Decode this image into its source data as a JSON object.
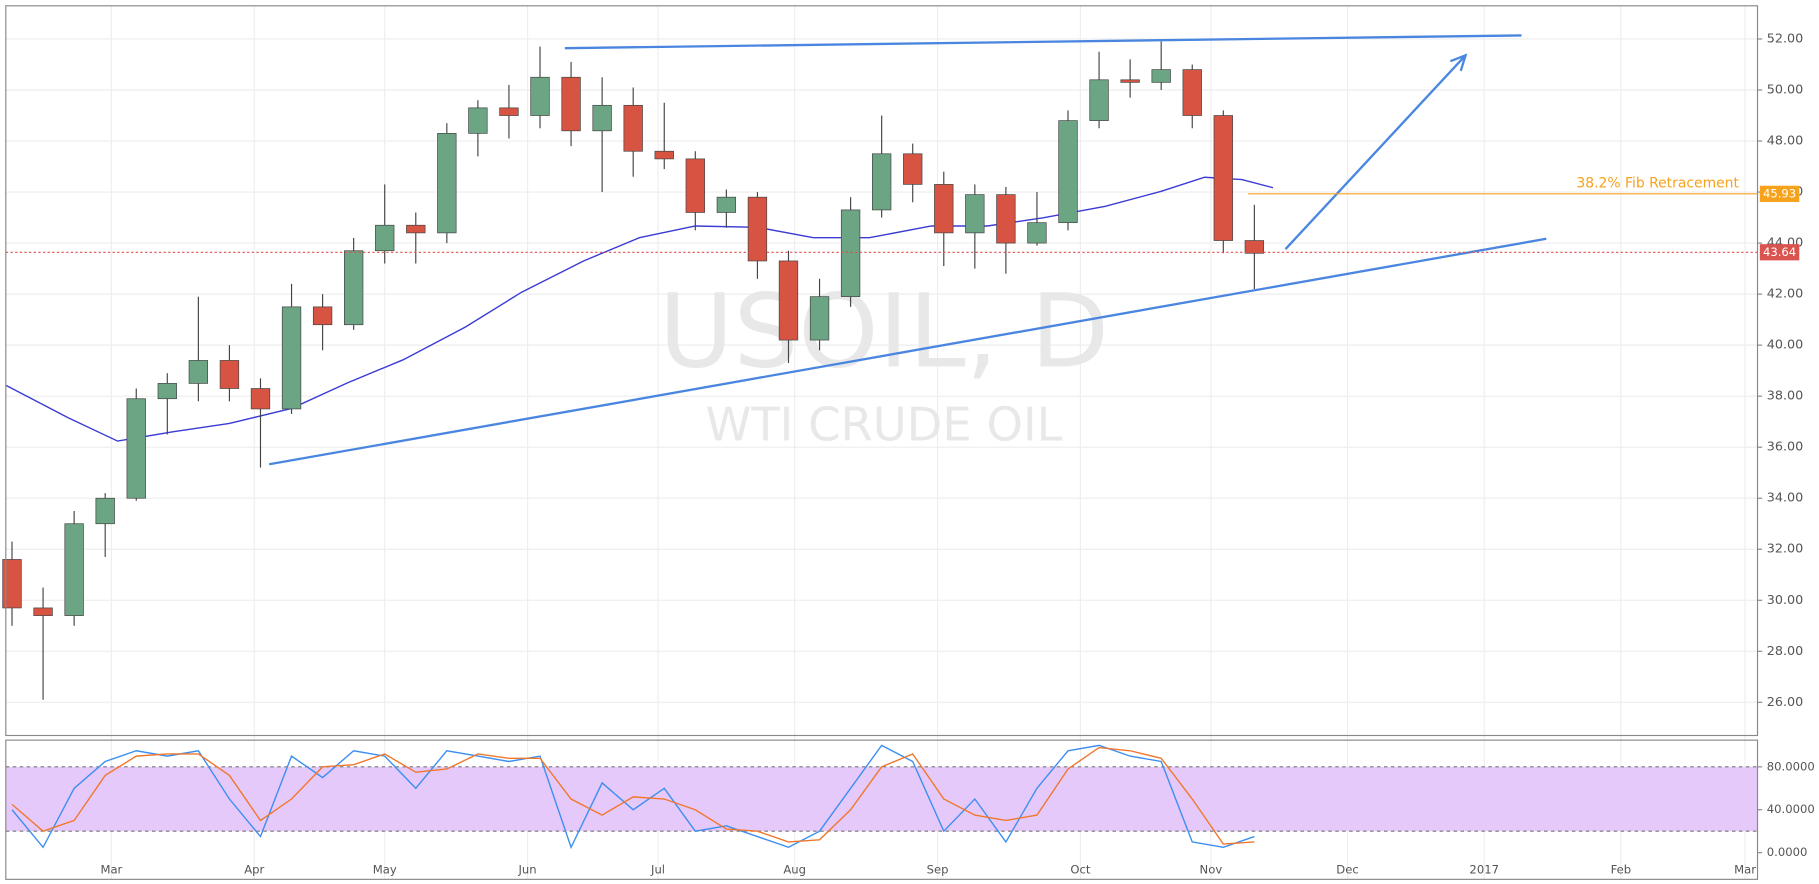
{
  "chart_data": [
    {
      "type": "candlestick",
      "watermark": "USOIL, D",
      "watermark_subtitle": "WTI CRUDE OIL",
      "xlim": [
        0,
        282
      ],
      "xticks": [
        {
          "value": 17,
          "label": "Mar"
        },
        {
          "value": 40,
          "label": "Apr"
        },
        {
          "value": 61,
          "label": "May"
        },
        {
          "value": 84,
          "label": "Jun"
        },
        {
          "value": 105,
          "label": "Jul"
        },
        {
          "value": 127,
          "label": "Aug"
        },
        {
          "value": 150,
          "label": "Sep"
        },
        {
          "value": 173,
          "label": "Oct"
        },
        {
          "value": 194,
          "label": "Nov"
        },
        {
          "value": 216,
          "label": "Dec"
        },
        {
          "value": 238,
          "label": "2017"
        },
        {
          "value": 260,
          "label": "Feb"
        },
        {
          "value": 280,
          "label": "Mar"
        }
      ],
      "ylim": [
        24.7,
        53.3
      ],
      "yticks": [
        {
          "value": 26,
          "label": "26.00"
        },
        {
          "value": 28,
          "label": "28.00"
        },
        {
          "value": 30,
          "label": "30.00"
        },
        {
          "value": 32,
          "label": "32.00"
        },
        {
          "value": 34,
          "label": "34.00"
        },
        {
          "value": 36,
          "label": "36.00"
        },
        {
          "value": 38,
          "label": "38.00"
        },
        {
          "value": 40,
          "label": "40.00"
        },
        {
          "value": 42,
          "label": "42.00"
        },
        {
          "value": 44,
          "label": "44.00"
        },
        {
          "value": 46,
          "label": "46.00"
        },
        {
          "value": 48,
          "label": "48.00"
        },
        {
          "value": 50,
          "label": "50.00"
        },
        {
          "value": 52,
          "label": "52.00"
        }
      ],
      "grid": true,
      "color_up": "#6ba583",
      "color_down": "#d75442",
      "x": [
        1,
        6,
        11,
        16,
        21,
        26,
        31,
        36,
        41,
        46,
        51,
        56,
        61,
        66,
        71,
        76,
        81,
        86,
        91,
        96,
        101,
        106,
        111,
        116,
        121,
        126,
        131,
        136,
        141,
        146,
        151,
        156,
        161,
        166,
        171,
        176,
        181,
        186,
        191,
        196,
        201
      ],
      "open": [
        31.6,
        29.7,
        29.4,
        33.0,
        34.0,
        37.9,
        38.5,
        39.4,
        38.3,
        37.5,
        41.5,
        40.8,
        43.7,
        44.7,
        44.4,
        48.3,
        49.3,
        49.0,
        50.5,
        48.4,
        49.4,
        47.6,
        47.3,
        45.2,
        45.8,
        43.3,
        40.2,
        41.9,
        45.3,
        47.5,
        46.3,
        44.4,
        45.9,
        44.0,
        44.8,
        48.8,
        50.4,
        50.3,
        50.8,
        49.0,
        44.1
      ],
      "high": [
        32.3,
        30.5,
        33.5,
        34.2,
        38.3,
        38.9,
        41.9,
        40.0,
        38.7,
        42.4,
        42.0,
        44.2,
        46.3,
        45.2,
        48.7,
        49.6,
        50.2,
        51.7,
        51.1,
        50.5,
        50.1,
        49.5,
        47.6,
        46.1,
        46.0,
        43.7,
        42.6,
        45.8,
        49.0,
        47.9,
        46.8,
        46.3,
        46.2,
        46.0,
        49.2,
        51.5,
        51.2,
        51.9,
        51.0,
        49.2,
        45.5
      ],
      "low": [
        29.0,
        26.1,
        29.0,
        31.7,
        33.9,
        36.5,
        37.8,
        37.8,
        35.2,
        37.3,
        39.8,
        40.6,
        43.2,
        43.2,
        44.0,
        47.4,
        48.1,
        48.5,
        47.8,
        46.0,
        46.6,
        46.9,
        44.5,
        44.6,
        42.6,
        39.3,
        39.8,
        41.5,
        45.0,
        45.6,
        43.1,
        43.0,
        42.8,
        43.9,
        44.5,
        48.5,
        49.7,
        50.0,
        48.5,
        43.6,
        42.2
      ],
      "close": [
        29.7,
        29.4,
        33.0,
        34.0,
        37.9,
        38.5,
        39.4,
        38.3,
        37.5,
        41.5,
        40.8,
        43.7,
        44.7,
        44.4,
        48.3,
        49.3,
        49.0,
        50.5,
        48.4,
        49.4,
        47.6,
        47.3,
        45.2,
        45.8,
        43.3,
        40.2,
        41.9,
        45.3,
        47.5,
        46.3,
        44.4,
        45.9,
        44.0,
        44.8,
        48.8,
        50.4,
        50.3,
        50.8,
        49.0,
        44.1,
        43.6
      ],
      "overlays": [
        {
          "color": "#3b3bd6",
          "x": [
            0,
            10,
            18,
            27,
            36,
            46,
            55,
            64,
            74,
            83,
            93,
            102,
            111,
            121,
            130,
            139,
            149,
            158,
            167,
            177,
            186,
            193,
            199,
            204
          ],
          "values": [
            38.43,
            37.16,
            36.24,
            36.61,
            36.93,
            37.52,
            38.52,
            39.43,
            40.71,
            42.07,
            43.3,
            44.21,
            44.67,
            44.62,
            44.21,
            44.21,
            44.67,
            44.67,
            44.99,
            45.44,
            46.03,
            46.58,
            46.49,
            46.17
          ]
        }
      ],
      "trendlines": [
        {
          "color": "#4a86e0",
          "x": [
            90,
            244
          ],
          "values": [
            51.64,
            52.14
          ]
        },
        {
          "color": "#4a86e0",
          "x": [
            42.4,
            248
          ],
          "values": [
            35.33,
            44.17
          ]
        }
      ],
      "arrow": {
        "color": "#4a86e0",
        "x": [
          206,
          235
        ],
        "values": [
          43.76,
          51.36
        ]
      },
      "levels": [
        {
          "value": 45.93,
          "label": "38.2% Fib Retracement",
          "color": "#f7a21b",
          "from": 200
        },
        {
          "value": 43.64,
          "color": "#d9534f",
          "from": 0
        }
      ]
    },
    {
      "type": "line",
      "xlim": [
        0,
        282
      ],
      "ylim": [
        -24.9,
        104.9
      ],
      "yticks": [
        {
          "value": 80,
          "label": "80.0000"
        },
        {
          "value": 40,
          "label": "40.0000"
        },
        {
          "value": 0,
          "label": "0.0000"
        }
      ],
      "band": [
        20,
        80
      ],
      "band_color": "#e6c9fb",
      "x": [
        1,
        6,
        11,
        16,
        21,
        26,
        31,
        36,
        41,
        46,
        51,
        56,
        61,
        66,
        71,
        76,
        81,
        86,
        91,
        96,
        101,
        106,
        111,
        116,
        121,
        126,
        131,
        136,
        141,
        146,
        151,
        156,
        161,
        166,
        171,
        176,
        181,
        186,
        191,
        196,
        201
      ],
      "series": [
        {
          "color": "#3c8ff0",
          "values": [
            40,
            5,
            60,
            85,
            95,
            90,
            95,
            50,
            15,
            90,
            70,
            95,
            90,
            60,
            95,
            90,
            85,
            90,
            5,
            65,
            40,
            60,
            20,
            25,
            15,
            5,
            20,
            60,
            100,
            85,
            20,
            50,
            10,
            60,
            95,
            100,
            90,
            85,
            10,
            5,
            15
          ]
        },
        {
          "color": "#f0782d",
          "values": [
            45,
            20,
            30,
            72,
            90,
            92,
            92,
            72,
            30,
            50,
            80,
            82,
            92,
            75,
            78,
            92,
            88,
            88,
            50,
            35,
            52,
            50,
            40,
            22,
            20,
            10,
            12,
            40,
            80,
            92,
            50,
            35,
            30,
            35,
            78,
            98,
            95,
            88,
            50,
            8,
            10
          ]
        }
      ]
    }
  ]
}
